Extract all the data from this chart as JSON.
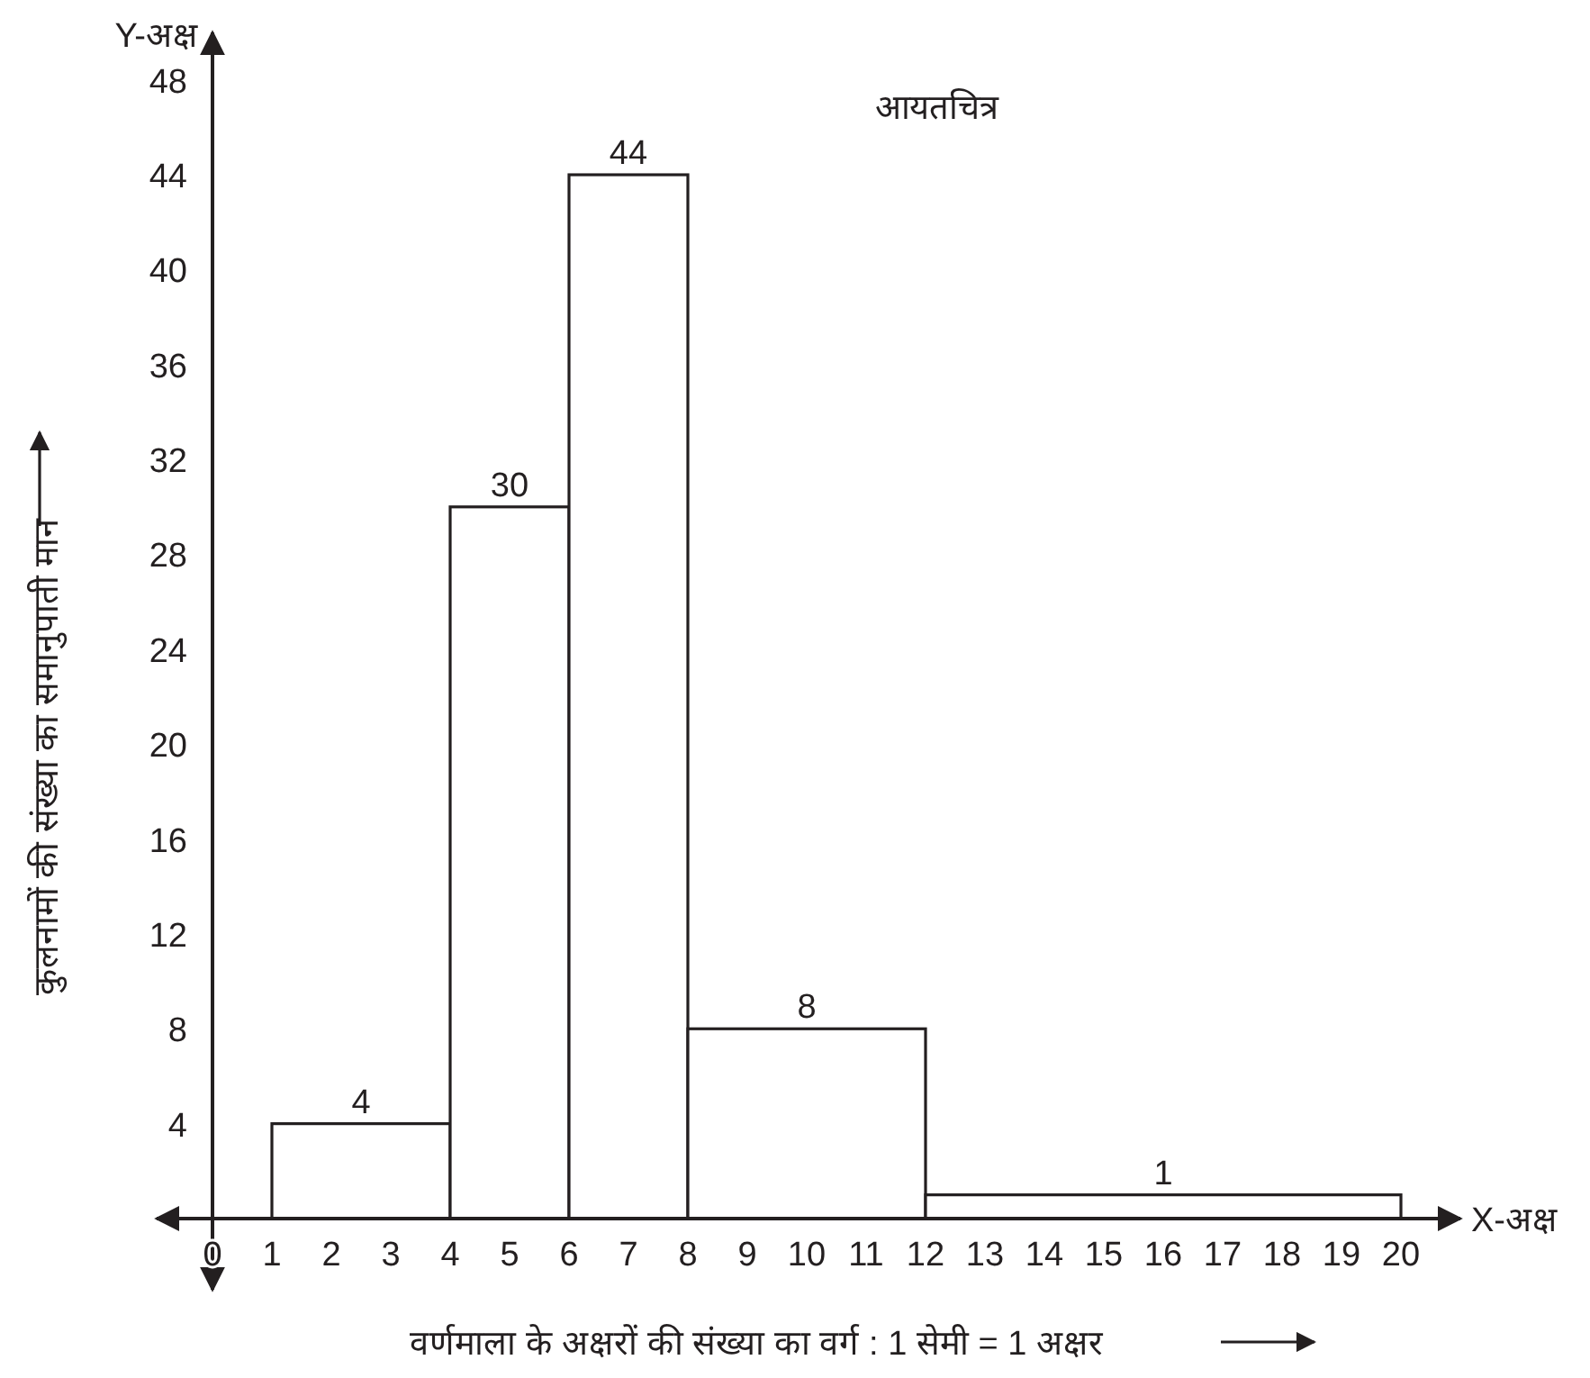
{
  "chart_data": {
    "type": "histogram",
    "title": "आयतचित्र",
    "xlabel": "वर्णमाला के अक्षरों की संख्या का वर्ग : 1 सेमी = 1 अक्षर",
    "ylabel": "कुलनामों की संख्या का समानुपाती मान",
    "annotations": [
      "Y-अक्ष",
      "X-अक्ष"
    ],
    "bins": [
      1,
      4,
      6,
      8,
      12,
      20
    ],
    "values": [
      4,
      30,
      44,
      8,
      1
    ],
    "color": "#ffffff",
    "data_labels": true,
    "xlim": [
      -1,
      21
    ],
    "ylim": [
      -3,
      50
    ],
    "xticks": [
      {
        "value": 0,
        "label": "0"
      },
      1,
      2,
      3,
      4,
      5,
      6,
      7,
      8,
      9,
      10,
      11,
      12,
      13,
      14,
      15,
      16,
      17,
      18,
      19,
      20
    ],
    "yticks": [
      4,
      8,
      12,
      16,
      20,
      24,
      28,
      32,
      36,
      40,
      44,
      48
    ],
    "grid": false
  }
}
